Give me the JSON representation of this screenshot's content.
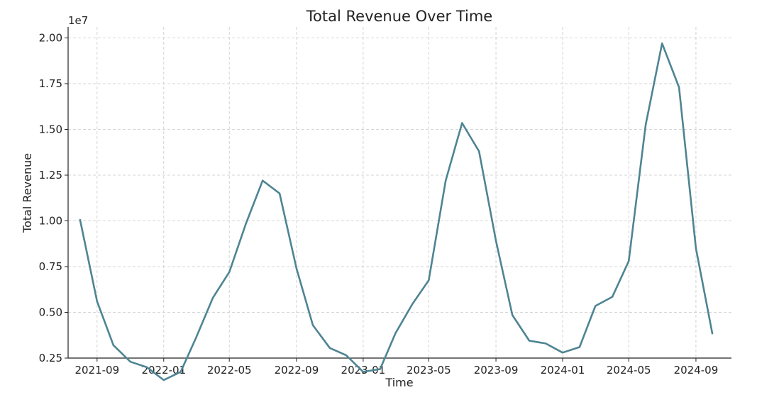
{
  "chart_data": {
    "type": "line",
    "title": "Total Revenue Over Time",
    "xlabel": "Time",
    "ylabel": "Total Revenue",
    "y_offset_label": "1e7",
    "ylim": [
      0.25,
      2.06
    ],
    "xlim": [
      "2021-07-10",
      "2024-11-05"
    ],
    "grid": true,
    "legend": "none",
    "line_color": "#4e8493",
    "x_ticks": [
      {
        "date": "2021-09-01",
        "label": "2021-09"
      },
      {
        "date": "2022-01-01",
        "label": "2022-01"
      },
      {
        "date": "2022-05-01",
        "label": "2022-05"
      },
      {
        "date": "2022-09-01",
        "label": "2022-09"
      },
      {
        "date": "2023-01-01",
        "label": "2023-01"
      },
      {
        "date": "2023-05-01",
        "label": "2023-05"
      },
      {
        "date": "2023-09-01",
        "label": "2023-09"
      },
      {
        "date": "2024-01-01",
        "label": "2024-01"
      },
      {
        "date": "2024-05-01",
        "label": "2024-05"
      },
      {
        "date": "2024-09-01",
        "label": "2024-09"
      }
    ],
    "y_ticks": [
      {
        "value": 0.25,
        "label": "0.25"
      },
      {
        "value": 0.5,
        "label": "0.50"
      },
      {
        "value": 0.75,
        "label": "0.75"
      },
      {
        "value": 1.0,
        "label": "1.00"
      },
      {
        "value": 1.25,
        "label": "1.25"
      },
      {
        "value": 1.5,
        "label": "1.50"
      },
      {
        "value": 1.75,
        "label": "1.75"
      },
      {
        "value": 2.0,
        "label": "2.00"
      }
    ],
    "series": [
      {
        "x": [
          "2021-08-01",
          "2021-09-01",
          "2021-10-01",
          "2021-11-01",
          "2021-12-01",
          "2022-01-01",
          "2022-02-01",
          "2022-03-01",
          "2022-04-01",
          "2022-05-01",
          "2022-06-01",
          "2022-07-01",
          "2022-08-01",
          "2022-09-01",
          "2022-10-01",
          "2022-11-01",
          "2022-12-01",
          "2023-01-01",
          "2023-02-01",
          "2023-03-01",
          "2023-04-01",
          "2023-05-01",
          "2023-06-01",
          "2023-07-01",
          "2023-08-01",
          "2023-09-01",
          "2023-10-01",
          "2023-11-01",
          "2023-12-01",
          "2024-01-01",
          "2024-02-01",
          "2024-03-01",
          "2024-04-01",
          "2024-05-01",
          "2024-06-01",
          "2024-07-01",
          "2024-08-01",
          "2024-09-01",
          "2024-10-01"
        ],
        "values": [
          1.005,
          0.56,
          0.32,
          0.23,
          0.2,
          0.13,
          0.175,
          0.36,
          0.58,
          0.72,
          0.99,
          1.22,
          1.15,
          0.74,
          0.43,
          0.305,
          0.265,
          0.175,
          0.19,
          0.385,
          0.545,
          0.675,
          1.22,
          1.535,
          1.38,
          0.89,
          0.485,
          0.345,
          0.33,
          0.28,
          0.31,
          0.535,
          0.585,
          0.78,
          1.525,
          1.97,
          1.73,
          0.85,
          0.385
        ]
      }
    ]
  }
}
